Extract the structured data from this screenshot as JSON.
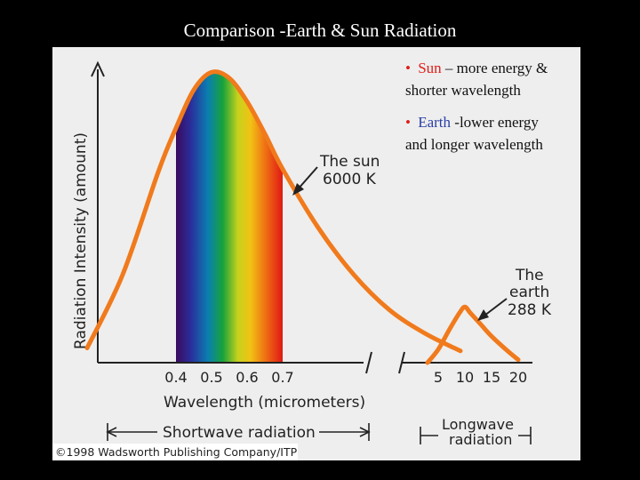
{
  "slide_title": "Comparison -Earth & Sun Radiation",
  "bullets": [
    {
      "marker": "•",
      "keyword": "Sun",
      "line1_rest": " – more energy &",
      "line2": "shorter wavelength",
      "keyword_color": "#e0201b"
    },
    {
      "marker": "•",
      "keyword": "Earth",
      "line1_rest": "-lower energy",
      "line2": "and longer wavelength",
      "keyword_color": "#2a3fa6"
    }
  ],
  "figure_copyright": "©1998 Wadsworth Publishing Company/ITP",
  "colors": {
    "curve": "#f07a1c",
    "panel_bg": "#eeeeee",
    "axis": "#222222"
  },
  "chart_data": {
    "type": "line",
    "title": "",
    "xlabel": "Wavelength (micrometers)",
    "ylabel": "Radiation Intensity (amount)",
    "left_panel": {
      "tick_labels": [
        "0.4",
        "0.5",
        "0.6",
        "0.7"
      ],
      "visible_spectrum_um": [
        0.4,
        0.7
      ],
      "range_label": "Shortwave radiation",
      "series": {
        "name": "The sun 6000 K",
        "label_lines": [
          "The sun",
          "6000 K"
        ],
        "x_um": [
          0.15,
          0.25,
          0.35,
          0.4,
          0.45,
          0.5,
          0.55,
          0.6,
          0.65,
          0.7,
          0.8,
          0.9,
          1.0,
          1.1,
          1.2
        ],
        "y": [
          5,
          30,
          65,
          80,
          93,
          99,
          97,
          89,
          78,
          66,
          46,
          30,
          18,
          10,
          4
        ]
      }
    },
    "right_panel": {
      "tick_labels": [
        "5",
        "10",
        "15",
        "20"
      ],
      "range_label_lines": [
        "Longwave",
        "radiation"
      ],
      "series": {
        "name": "The earth 288 K",
        "label_lines": [
          "The",
          "earth",
          "288 K"
        ],
        "x_um": [
          3,
          5,
          7,
          9,
          10,
          11,
          13,
          15,
          18,
          20
        ],
        "y": [
          0,
          4.5,
          11,
          17,
          19,
          17,
          13,
          9,
          4,
          1
        ]
      }
    }
  }
}
